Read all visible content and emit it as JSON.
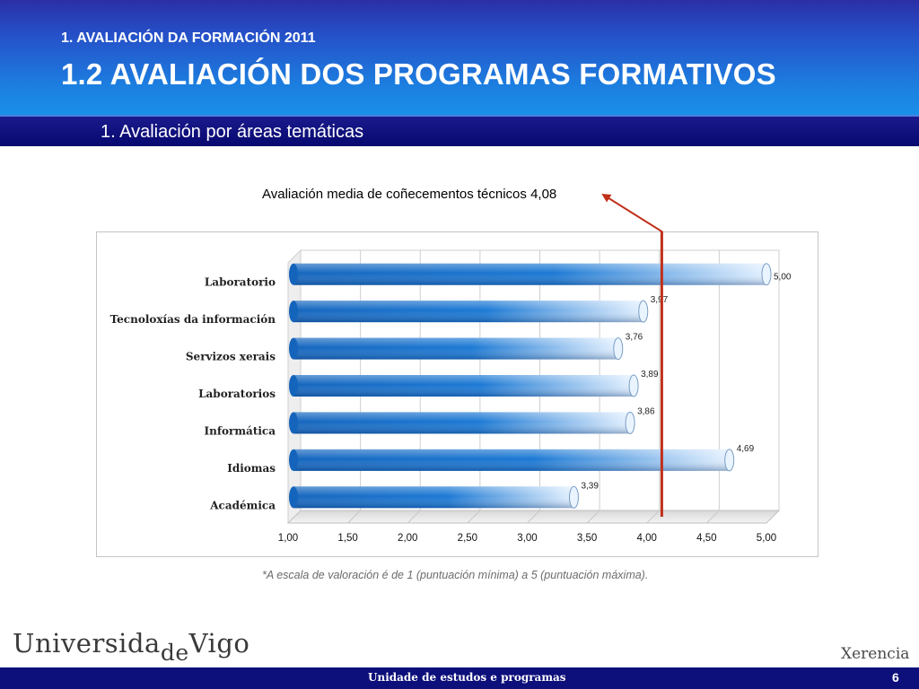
{
  "header": {
    "section": "1. AVALIACIÓN DA FORMACIÓN 2011",
    "title": "1.2 AVALIACIÓN DOS PROGRAMAS FORMATIVOS",
    "subtitle": "1. Avaliación por áreas temáticas"
  },
  "chart_data": {
    "type": "bar",
    "orientation": "horizontal",
    "title": "Avaliación media de coñecementos técnicos 4,08",
    "categories": [
      "Laboratorio",
      "Tecnoloxías da información",
      "Servizos xerais",
      "Laboratorios",
      "Informática",
      "Idiomas",
      "Académica"
    ],
    "values": [
      5.0,
      3.97,
      3.76,
      3.89,
      3.86,
      4.69,
      3.39
    ],
    "value_labels": [
      "5,00",
      "3,97",
      "3,76",
      "3,89",
      "3,86",
      "4,69",
      "3,39"
    ],
    "xlim": [
      1.0,
      5.0
    ],
    "xticks": [
      "1,00",
      "1,50",
      "2,00",
      "2,50",
      "3,00",
      "3,50",
      "4,00",
      "4,50",
      "5,00"
    ],
    "reference_line": 4.08,
    "grid": true,
    "colors": {
      "bar": "#1a6fc4",
      "bar_highlight": "#d6eaff",
      "reference": "#c0301a"
    }
  },
  "footnote": "*A escala de valoración é de 1 (puntuación mínima) a 5 (puntuación máxima).",
  "footer": {
    "logo_left": "Universida",
    "logo_left_sub": "de",
    "logo_left_end": "Vigo",
    "logo_right": "Xerencia",
    "unit": "Unidade de estudos e programas",
    "page": "6"
  }
}
